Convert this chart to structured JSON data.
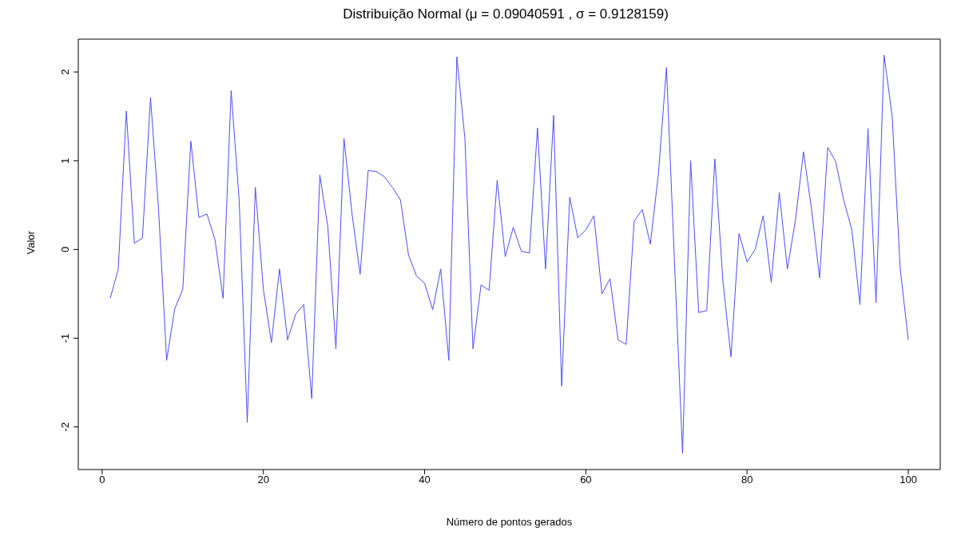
{
  "chart_data": {
    "type": "line",
    "title": "Distribuição Normal (μ = 0.09040591 , σ = 0.9128159)",
    "xlabel": "Número de pontos gerados",
    "ylabel": "Valor",
    "x": [
      1,
      2,
      3,
      4,
      5,
      6,
      7,
      8,
      9,
      10,
      11,
      12,
      13,
      14,
      15,
      16,
      17,
      18,
      19,
      20,
      21,
      22,
      23,
      24,
      25,
      26,
      27,
      28,
      29,
      30,
      31,
      32,
      33,
      34,
      35,
      36,
      37,
      38,
      39,
      40,
      41,
      42,
      43,
      44,
      45,
      46,
      47,
      48,
      49,
      50,
      51,
      52,
      53,
      54,
      55,
      56,
      57,
      58,
      59,
      60,
      61,
      62,
      63,
      64,
      65,
      66,
      67,
      68,
      69,
      70,
      71,
      72,
      73,
      74,
      75,
      76,
      77,
      78,
      79,
      80,
      81,
      82,
      83,
      84,
      85,
      86,
      87,
      88,
      89,
      90,
      91,
      92,
      93,
      94,
      95,
      96,
      97,
      98,
      99,
      100
    ],
    "series": [
      {
        "color": "#4d4dff",
        "values": [
          -0.55,
          -0.22,
          1.56,
          0.07,
          0.13,
          1.71,
          0.45,
          -1.25,
          -0.67,
          -0.45,
          1.22,
          0.36,
          0.4,
          0.11,
          -0.55,
          1.79,
          0.55,
          -1.95,
          0.7,
          -0.45,
          -1.05,
          -0.22,
          -1.02,
          -0.73,
          -0.62,
          -1.68,
          0.84,
          0.25,
          -1.12,
          1.25,
          0.4,
          -0.28,
          0.89,
          0.88,
          0.82,
          0.7,
          0.56,
          -0.06,
          -0.3,
          -0.38,
          -0.68,
          -0.22,
          -1.25,
          2.17,
          1.25,
          -1.12,
          -0.4,
          -0.46,
          0.78,
          -0.08,
          0.25,
          -0.02,
          -0.04,
          1.37,
          -0.22,
          1.51,
          -1.54,
          0.59,
          0.13,
          0.22,
          0.38,
          -0.5,
          -0.33,
          -1.02,
          -1.07,
          0.32,
          0.45,
          0.06,
          0.85,
          2.05,
          -0.15,
          -2.3,
          1.0,
          -0.71,
          -0.69,
          1.02,
          -0.35,
          -1.21,
          0.18,
          -0.14,
          0.0,
          0.38,
          -0.37,
          0.64,
          -0.22,
          0.33,
          1.1,
          0.45,
          -0.32,
          1.15,
          0.99,
          0.55,
          0.22,
          -0.62,
          1.36,
          -0.6,
          2.19,
          1.5,
          -0.22,
          -1.02
        ]
      }
    ],
    "xlim": [
      -2.96,
      103.96
    ],
    "xticks": [
      0,
      20,
      40,
      60,
      80,
      100
    ],
    "ylim": [
      -2.48,
      2.37
    ],
    "yticks": [
      -2,
      -1,
      0,
      1,
      2
    ],
    "grid": false,
    "legend": false,
    "marker": "none",
    "line_style": "solid"
  }
}
